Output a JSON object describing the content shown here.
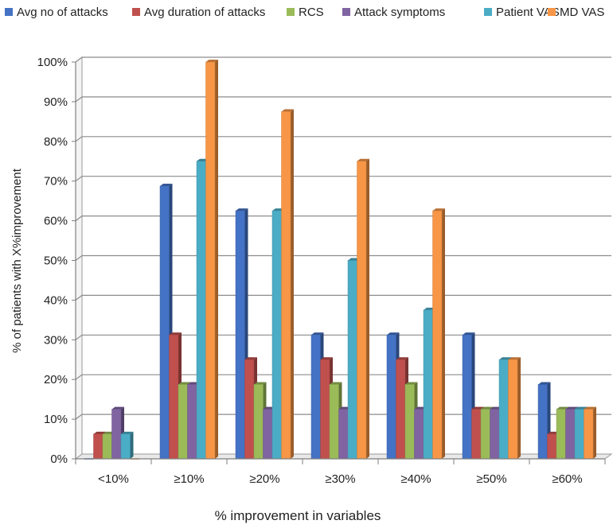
{
  "chart_data": {
    "type": "bar",
    "title": "",
    "xlabel": "% improvement in variables",
    "ylabel": "% of patients with  X%improvement",
    "ylim": [
      0,
      100
    ],
    "yticks": [
      0,
      10,
      20,
      30,
      40,
      50,
      60,
      70,
      80,
      90,
      100
    ],
    "ytick_labels": [
      "0%",
      "10%",
      "20%",
      "30%",
      "40%",
      "50%",
      "60%",
      "70%",
      "80%",
      "90%",
      "100%"
    ],
    "grid": true,
    "legend_position": "top",
    "style": "3d-clustered-column",
    "categories": [
      "<10%",
      "≥10%",
      "≥20%",
      "≥30%",
      "≥40%",
      "≥50%",
      "≥60%"
    ],
    "series": [
      {
        "name": "Avg no of attacks",
        "color": "#4472c4",
        "values": [
          0,
          68.75,
          62.5,
          31.25,
          31.25,
          31.25,
          18.75
        ]
      },
      {
        "name": "Avg duration of attacks",
        "color": "#c0504d",
        "values": [
          6.25,
          31.25,
          25,
          25,
          25,
          12.5,
          6.25
        ]
      },
      {
        "name": "RCS",
        "color": "#9bbb59",
        "values": [
          6.25,
          18.75,
          18.75,
          18.75,
          18.75,
          12.5,
          12.5
        ]
      },
      {
        "name": "Attack symptoms",
        "color": "#8064a2",
        "values": [
          12.5,
          18.75,
          12.5,
          12.5,
          12.5,
          12.5,
          12.5
        ]
      },
      {
        "name": "Patient VAS",
        "color": "#4bacc6",
        "values": [
          6.25,
          75,
          62.5,
          50,
          37.5,
          25,
          12.5
        ]
      },
      {
        "name": "MD VAS",
        "color": "#f79646",
        "values": [
          0,
          100,
          87.5,
          75,
          62.5,
          25,
          12.5
        ]
      }
    ]
  }
}
